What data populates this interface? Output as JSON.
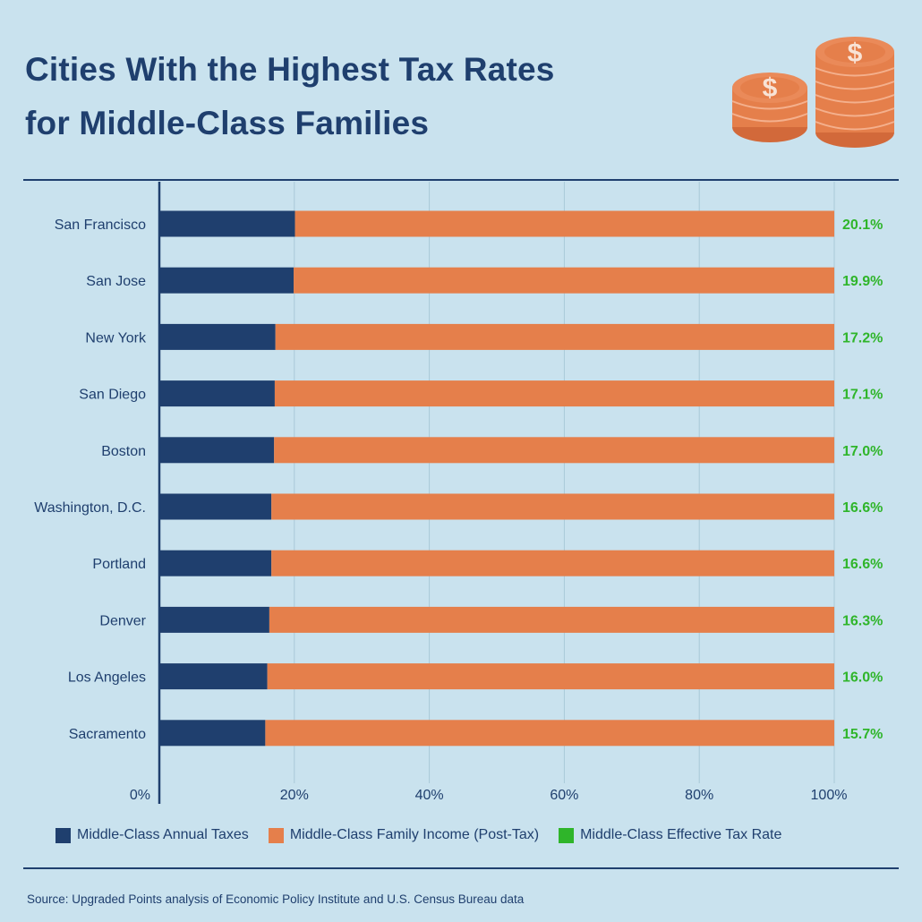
{
  "header": {
    "title_line1": "Cities With the Highest Tax Rates",
    "title_line2": "for Middle-Class Families",
    "coin_symbol": "$"
  },
  "colors": {
    "taxes": "#1f3f6e",
    "income": "#e57f4b",
    "rate": "#2fb52a",
    "grid": "#a9c9d8",
    "axis": "#1f3f6e",
    "text": "#1f3f6e"
  },
  "chart_data": {
    "type": "bar",
    "orientation": "horizontal",
    "stacked": true,
    "categories": [
      "San Francisco",
      "San Jose",
      "New York",
      "San Diego",
      "Boston",
      "Washington, D.C.",
      "Portland",
      "Denver",
      "Los Angeles",
      "Sacramento"
    ],
    "series": [
      {
        "name": "Middle-Class Annual Taxes",
        "values": [
          20.1,
          19.9,
          17.2,
          17.1,
          17.0,
          16.6,
          16.6,
          16.3,
          16.0,
          15.7
        ]
      },
      {
        "name": "Middle-Class Family Income (Post-Tax)",
        "values": [
          79.9,
          80.1,
          82.8,
          82.9,
          83.0,
          83.4,
          83.4,
          83.7,
          84.0,
          84.3
        ]
      }
    ],
    "rate_series_name": "Middle-Class Effective Tax Rate",
    "rate_labels": [
      "20.1%",
      "19.9%",
      "17.2%",
      "17.1%",
      "17.0%",
      "16.6%",
      "16.6%",
      "16.3%",
      "16.0%",
      "15.7%"
    ],
    "x_ticks": [
      "0%",
      "20%",
      "40%",
      "60%",
      "80%",
      "100%"
    ],
    "x_tick_values": [
      0,
      20,
      40,
      60,
      80,
      100
    ],
    "xlim": [
      0,
      100
    ],
    "grid": true,
    "legend_position": "bottom"
  },
  "legend": {
    "taxes": "Middle-Class Annual Taxes",
    "income": "Middle-Class Family Income (Post-Tax)",
    "rate": "Middle-Class Effective Tax Rate"
  },
  "footer": {
    "source": "Source: Upgraded Points analysis of Economic Policy Institute and U.S. Census Bureau data"
  }
}
